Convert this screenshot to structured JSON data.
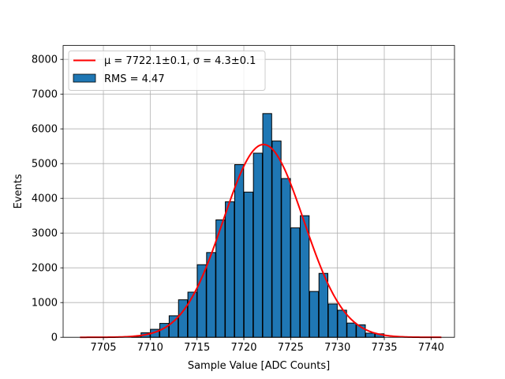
{
  "chart_data": {
    "type": "bar",
    "xlabel": "Sample Value [ADC Counts]",
    "ylabel": "Events",
    "xlim": [
      7700.7,
      7742.5
    ],
    "ylim": [
      0,
      8400
    ],
    "grid": true,
    "legend_position": "top-left",
    "x_ticks": [
      7705,
      7710,
      7715,
      7720,
      7725,
      7730,
      7735,
      7740
    ],
    "y_ticks": [
      0,
      1000,
      2000,
      3000,
      4000,
      5000,
      6000,
      7000,
      8000
    ],
    "series": [
      {
        "kind": "histogram",
        "label": "RMS = 4.47",
        "color": "#1f77b4",
        "edge_color": "#000000",
        "bin_width": 0.95,
        "bins": [
          {
            "x": 7708.5,
            "value": 10
          },
          {
            "x": 7709.5,
            "value": 130
          },
          {
            "x": 7710.5,
            "value": 230
          },
          {
            "x": 7711.5,
            "value": 400
          },
          {
            "x": 7712.5,
            "value": 620
          },
          {
            "x": 7713.5,
            "value": 1080
          },
          {
            "x": 7714.5,
            "value": 1300
          },
          {
            "x": 7715.5,
            "value": 2090
          },
          {
            "x": 7716.5,
            "value": 2440
          },
          {
            "x": 7717.5,
            "value": 3380
          },
          {
            "x": 7718.5,
            "value": 3900
          },
          {
            "x": 7719.5,
            "value": 4970
          },
          {
            "x": 7720.5,
            "value": 4180
          },
          {
            "x": 7721.5,
            "value": 5300
          },
          {
            "x": 7722.5,
            "value": 6440
          },
          {
            "x": 7723.5,
            "value": 5650
          },
          {
            "x": 7724.5,
            "value": 4570
          },
          {
            "x": 7725.5,
            "value": 3150
          },
          {
            "x": 7726.5,
            "value": 3500
          },
          {
            "x": 7727.5,
            "value": 1320
          },
          {
            "x": 7728.5,
            "value": 1840
          },
          {
            "x": 7729.5,
            "value": 960
          },
          {
            "x": 7730.5,
            "value": 780
          },
          {
            "x": 7731.5,
            "value": 410
          },
          {
            "x": 7732.5,
            "value": 360
          },
          {
            "x": 7733.5,
            "value": 120
          },
          {
            "x": 7734.5,
            "value": 100
          }
        ]
      },
      {
        "kind": "gaussian-fit",
        "label": "μ = 7722.1±0.1, σ = 4.3±0.1",
        "color": "#ff0000",
        "mu": 7722.1,
        "sigma": 4.3,
        "amplitude": 5550,
        "x_range": [
          7702.5,
          7741.1
        ]
      }
    ]
  }
}
